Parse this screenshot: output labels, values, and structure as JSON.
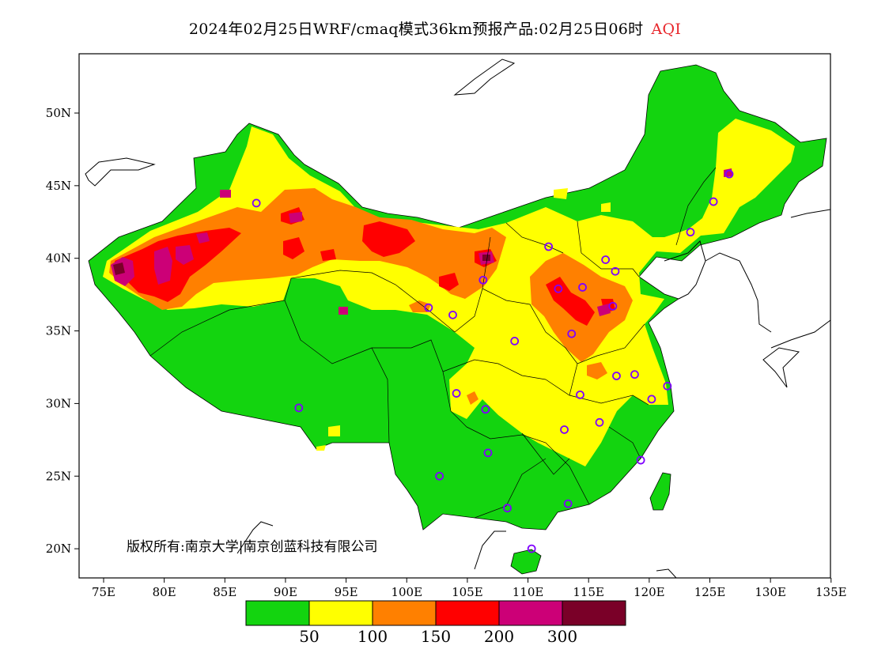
{
  "header": {
    "title": "2024年02月25日WRF/cmaq模式36km预报产品:02月25日06时",
    "product": "AQI"
  },
  "map": {
    "lon_ticks": [
      "75E",
      "80E",
      "85E",
      "90E",
      "95E",
      "100E",
      "105E",
      "110E",
      "115E",
      "120E",
      "125E",
      "130E",
      "135E"
    ],
    "lat_ticks": [
      "50N",
      "45N",
      "40N",
      "35N",
      "30N",
      "25N",
      "20N"
    ],
    "copyright": "版权所有:南京大学|南京创蓝科技有限公司"
  },
  "legend": {
    "colors": [
      "#13d40f",
      "#ffff00",
      "#ff8000",
      "#ff0000",
      "#cc0077",
      "#7a0028"
    ],
    "labels": [
      "50",
      "100",
      "150",
      "200",
      "300"
    ]
  },
  "stations": [
    [
      87.6,
      43.8
    ],
    [
      91.1,
      29.7
    ],
    [
      101.8,
      36.6
    ],
    [
      103.8,
      36.1
    ],
    [
      106.3,
      38.5
    ],
    [
      106.7,
      26.6
    ],
    [
      102.7,
      25.0
    ],
    [
      104.1,
      30.7
    ],
    [
      106.5,
      29.6
    ],
    [
      108.9,
      34.3
    ],
    [
      111.7,
      40.8
    ],
    [
      112.5,
      37.9
    ],
    [
      113.6,
      34.8
    ],
    [
      114.5,
      38.0
    ],
    [
      116.4,
      39.9
    ],
    [
      117.2,
      39.1
    ],
    [
      117.0,
      36.7
    ],
    [
      117.3,
      31.9
    ],
    [
      118.8,
      32.0
    ],
    [
      120.2,
      30.3
    ],
    [
      121.5,
      31.2
    ],
    [
      114.3,
      30.6
    ],
    [
      113.0,
      28.2
    ],
    [
      115.9,
      28.7
    ],
    [
      119.3,
      26.1
    ],
    [
      108.3,
      22.8
    ],
    [
      113.3,
      23.1
    ],
    [
      110.3,
      20.0
    ],
    [
      123.4,
      41.8
    ],
    [
      125.3,
      43.9
    ],
    [
      126.6,
      45.8
    ]
  ]
}
